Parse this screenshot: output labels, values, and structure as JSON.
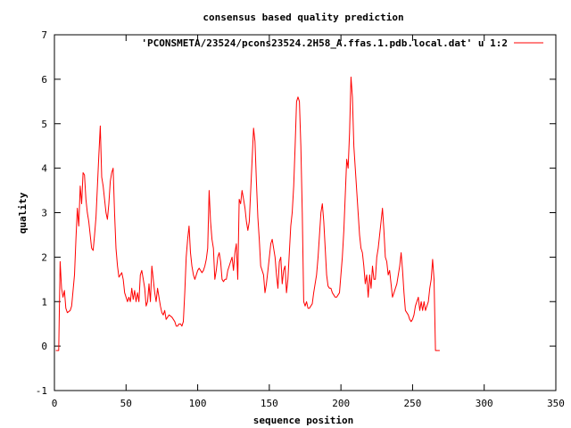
{
  "chart_data": {
    "type": "line",
    "title": "consensus based quality prediction",
    "xlabel": "sequence position",
    "ylabel": "quality",
    "xlim": [
      0,
      350
    ],
    "ylim": [
      -1,
      7
    ],
    "xticks": [
      0,
      50,
      100,
      150,
      200,
      250,
      300,
      350
    ],
    "yticks": [
      -1,
      0,
      1,
      2,
      3,
      4,
      5,
      6,
      7
    ],
    "grid": false,
    "legend_position": "top-right",
    "series": [
      {
        "name": "'PCONSMETA/23524/pcons23524.2H58_A.ffas.1.pdb.local.dat' u 1:2",
        "color": "#ff0000",
        "points": [
          [
            1,
            -0.1
          ],
          [
            3,
            -0.1
          ],
          [
            4,
            1.9
          ],
          [
            5,
            1.3
          ],
          [
            6,
            1.1
          ],
          [
            7,
            1.25
          ],
          [
            8,
            0.85
          ],
          [
            9,
            0.75
          ],
          [
            11,
            0.8
          ],
          [
            12,
            0.9
          ],
          [
            14,
            1.6
          ],
          [
            15,
            2.4
          ],
          [
            16,
            3.1
          ],
          [
            17,
            2.7
          ],
          [
            18,
            3.6
          ],
          [
            19,
            3.2
          ],
          [
            20,
            3.9
          ],
          [
            21,
            3.85
          ],
          [
            22,
            3.3
          ],
          [
            23,
            3.0
          ],
          [
            24,
            2.8
          ],
          [
            25,
            2.5
          ],
          [
            26,
            2.2
          ],
          [
            27,
            2.15
          ],
          [
            28,
            2.5
          ],
          [
            29,
            2.9
          ],
          [
            30,
            3.6
          ],
          [
            31,
            4.3
          ],
          [
            32,
            4.95
          ],
          [
            33,
            3.8
          ],
          [
            34,
            3.6
          ],
          [
            35,
            3.3
          ],
          [
            36,
            3.0
          ],
          [
            37,
            2.85
          ],
          [
            38,
            3.2
          ],
          [
            39,
            3.7
          ],
          [
            40,
            3.9
          ],
          [
            41,
            4.0
          ],
          [
            42,
            3.0
          ],
          [
            43,
            2.2
          ],
          [
            44,
            1.8
          ],
          [
            45,
            1.55
          ],
          [
            46,
            1.6
          ],
          [
            47,
            1.65
          ],
          [
            48,
            1.5
          ],
          [
            49,
            1.2
          ],
          [
            50,
            1.1
          ],
          [
            51,
            1.0
          ],
          [
            52,
            1.1
          ],
          [
            53,
            1.0
          ],
          [
            54,
            1.3
          ],
          [
            55,
            1.05
          ],
          [
            56,
            1.25
          ],
          [
            57,
            1.0
          ],
          [
            58,
            1.2
          ],
          [
            59,
            1.0
          ],
          [
            60,
            1.6
          ],
          [
            61,
            1.7
          ],
          [
            62,
            1.5
          ],
          [
            63,
            1.3
          ],
          [
            64,
            0.9
          ],
          [
            65,
            1.0
          ],
          [
            66,
            1.4
          ],
          [
            67,
            1.0
          ],
          [
            68,
            1.8
          ],
          [
            69,
            1.5
          ],
          [
            70,
            1.2
          ],
          [
            71,
            1.0
          ],
          [
            72,
            1.3
          ],
          [
            73,
            1.1
          ],
          [
            74,
            0.9
          ],
          [
            75,
            0.75
          ],
          [
            76,
            0.7
          ],
          [
            77,
            0.8
          ],
          [
            78,
            0.6
          ],
          [
            80,
            0.7
          ],
          [
            82,
            0.65
          ],
          [
            84,
            0.55
          ],
          [
            85,
            0.45
          ],
          [
            86,
            0.45
          ],
          [
            87,
            0.5
          ],
          [
            88,
            0.5
          ],
          [
            89,
            0.45
          ],
          [
            90,
            0.55
          ],
          [
            91,
            1.2
          ],
          [
            92,
            2.0
          ],
          [
            93,
            2.4
          ],
          [
            94,
            2.7
          ],
          [
            95,
            2.1
          ],
          [
            96,
            1.8
          ],
          [
            97,
            1.6
          ],
          [
            98,
            1.5
          ],
          [
            99,
            1.6
          ],
          [
            100,
            1.7
          ],
          [
            101,
            1.75
          ],
          [
            102,
            1.7
          ],
          [
            103,
            1.65
          ],
          [
            104,
            1.7
          ],
          [
            105,
            1.8
          ],
          [
            106,
            1.95
          ],
          [
            107,
            2.2
          ],
          [
            108,
            3.5
          ],
          [
            109,
            2.8
          ],
          [
            110,
            2.4
          ],
          [
            111,
            2.2
          ],
          [
            112,
            1.5
          ],
          [
            113,
            1.7
          ],
          [
            114,
            2.0
          ],
          [
            115,
            2.1
          ],
          [
            116,
            1.9
          ],
          [
            117,
            1.5
          ],
          [
            118,
            1.45
          ],
          [
            119,
            1.5
          ],
          [
            120,
            1.5
          ],
          [
            121,
            1.7
          ],
          [
            122,
            1.8
          ],
          [
            123,
            1.9
          ],
          [
            124,
            2.0
          ],
          [
            125,
            1.7
          ],
          [
            126,
            2.1
          ],
          [
            127,
            2.3
          ],
          [
            128,
            1.5
          ],
          [
            129,
            3.3
          ],
          [
            130,
            3.2
          ],
          [
            131,
            3.5
          ],
          [
            132,
            3.3
          ],
          [
            133,
            3.1
          ],
          [
            134,
            2.8
          ],
          [
            135,
            2.6
          ],
          [
            136,
            2.8
          ],
          [
            137,
            3.5
          ],
          [
            138,
            4.2
          ],
          [
            139,
            4.9
          ],
          [
            140,
            4.6
          ],
          [
            141,
            3.7
          ],
          [
            142,
            2.9
          ],
          [
            143,
            2.4
          ],
          [
            144,
            1.8
          ],
          [
            145,
            1.7
          ],
          [
            146,
            1.6
          ],
          [
            147,
            1.2
          ],
          [
            148,
            1.4
          ],
          [
            149,
            1.7
          ],
          [
            150,
            2.0
          ],
          [
            151,
            2.3
          ],
          [
            152,
            2.4
          ],
          [
            153,
            2.2
          ],
          [
            154,
            2.0
          ],
          [
            155,
            1.6
          ],
          [
            156,
            1.3
          ],
          [
            157,
            1.9
          ],
          [
            158,
            2.0
          ],
          [
            159,
            1.4
          ],
          [
            160,
            1.7
          ],
          [
            161,
            1.8
          ],
          [
            162,
            1.2
          ],
          [
            163,
            1.5
          ],
          [
            164,
            2.1
          ],
          [
            165,
            2.7
          ],
          [
            166,
            3.0
          ],
          [
            167,
            3.6
          ],
          [
            168,
            4.5
          ],
          [
            169,
            5.5
          ],
          [
            170,
            5.6
          ],
          [
            171,
            5.5
          ],
          [
            172,
            4.5
          ],
          [
            173,
            3.0
          ],
          [
            174,
            1.0
          ],
          [
            175,
            0.9
          ],
          [
            176,
            1.0
          ],
          [
            177,
            0.85
          ],
          [
            178,
            0.85
          ],
          [
            179,
            0.9
          ],
          [
            180,
            0.95
          ],
          [
            181,
            1.2
          ],
          [
            182,
            1.4
          ],
          [
            183,
            1.6
          ],
          [
            184,
            2.0
          ],
          [
            185,
            2.5
          ],
          [
            186,
            3.0
          ],
          [
            187,
            3.2
          ],
          [
            188,
            2.8
          ],
          [
            189,
            2.2
          ],
          [
            190,
            1.6
          ],
          [
            191,
            1.35
          ],
          [
            192,
            1.3
          ],
          [
            193,
            1.3
          ],
          [
            194,
            1.2
          ],
          [
            195,
            1.15
          ],
          [
            196,
            1.1
          ],
          [
            197,
            1.1
          ],
          [
            198,
            1.15
          ],
          [
            199,
            1.2
          ],
          [
            200,
            1.6
          ],
          [
            201,
            2.0
          ],
          [
            202,
            2.6
          ],
          [
            203,
            3.4
          ],
          [
            204,
            4.2
          ],
          [
            205,
            4.0
          ],
          [
            206,
            4.8
          ],
          [
            207,
            6.05
          ],
          [
            208,
            5.6
          ],
          [
            209,
            4.5
          ],
          [
            210,
            4.0
          ],
          [
            211,
            3.5
          ],
          [
            212,
            3.0
          ],
          [
            213,
            2.5
          ],
          [
            214,
            2.2
          ],
          [
            215,
            2.1
          ],
          [
            216,
            1.8
          ],
          [
            217,
            1.4
          ],
          [
            218,
            1.6
          ],
          [
            219,
            1.1
          ],
          [
            220,
            1.6
          ],
          [
            221,
            1.3
          ],
          [
            222,
            1.8
          ],
          [
            223,
            1.5
          ],
          [
            224,
            1.5
          ],
          [
            225,
            2.0
          ],
          [
            226,
            2.2
          ],
          [
            227,
            2.5
          ],
          [
            228,
            2.8
          ],
          [
            229,
            3.1
          ],
          [
            230,
            2.6
          ],
          [
            231,
            2.0
          ],
          [
            232,
            1.9
          ],
          [
            233,
            1.6
          ],
          [
            234,
            1.7
          ],
          [
            235,
            1.4
          ],
          [
            236,
            1.1
          ],
          [
            237,
            1.2
          ],
          [
            238,
            1.3
          ],
          [
            239,
            1.4
          ],
          [
            240,
            1.6
          ],
          [
            241,
            1.8
          ],
          [
            242,
            2.1
          ],
          [
            243,
            1.7
          ],
          [
            244,
            1.2
          ],
          [
            245,
            0.8
          ],
          [
            246,
            0.75
          ],
          [
            247,
            0.7
          ],
          [
            248,
            0.6
          ],
          [
            249,
            0.55
          ],
          [
            250,
            0.6
          ],
          [
            251,
            0.7
          ],
          [
            252,
            0.9
          ],
          [
            253,
            1.0
          ],
          [
            254,
            1.1
          ],
          [
            255,
            0.8
          ],
          [
            256,
            1.0
          ],
          [
            257,
            0.8
          ],
          [
            258,
            1.0
          ],
          [
            259,
            0.8
          ],
          [
            260,
            0.9
          ],
          [
            261,
            1.0
          ],
          [
            262,
            1.3
          ],
          [
            263,
            1.5
          ],
          [
            264,
            1.95
          ],
          [
            265,
            1.5
          ],
          [
            266,
            -0.1
          ],
          [
            269,
            -0.1
          ]
        ]
      }
    ]
  }
}
